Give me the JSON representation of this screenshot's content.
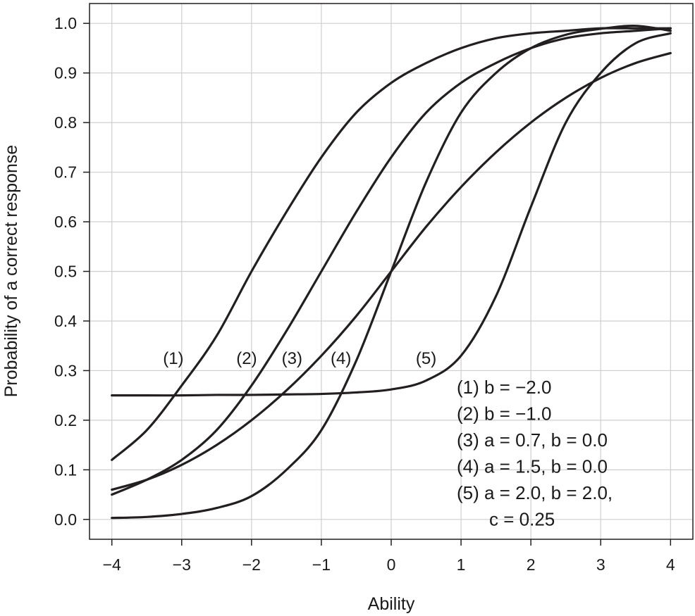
{
  "chart_data": {
    "type": "line",
    "xlabel": "Ability",
    "ylabel": "Probability of a correct response",
    "xlim": [
      -4.32,
      4.32
    ],
    "ylim": [
      -0.04,
      1.04
    ],
    "xticks": [
      -4,
      -3,
      -2,
      -1,
      0,
      1,
      2,
      3,
      4
    ],
    "xtick_labels": [
      "−4",
      "−3",
      "−2",
      "−1",
      "0",
      "1",
      "2",
      "3",
      "4"
    ],
    "yticks": [
      0.0,
      0.1,
      0.2,
      0.3,
      0.4,
      0.5,
      0.6,
      0.7,
      0.8,
      0.9,
      1.0
    ],
    "ytick_labels": [
      "0.0",
      "0.1",
      "0.2",
      "0.3",
      "0.4",
      "0.5",
      "0.6",
      "0.7",
      "0.8",
      "0.9",
      "1.0"
    ],
    "grid": true,
    "x": [
      -4,
      -3.5,
      -3,
      -2.5,
      -2,
      -1.5,
      -1,
      -0.5,
      0,
      0.5,
      1,
      1.5,
      2,
      2.5,
      3,
      3.5,
      4
    ],
    "series": [
      {
        "name": "(1)",
        "values": [
          0.12,
          0.18,
          0.27,
          0.37,
          0.5,
          0.62,
          0.73,
          0.82,
          0.88,
          0.92,
          0.95,
          0.97,
          0.98,
          0.985,
          0.99,
          0.99,
          0.99
        ]
      },
      {
        "name": "(2)",
        "values": [
          0.05,
          0.08,
          0.12,
          0.18,
          0.27,
          0.38,
          0.5,
          0.62,
          0.73,
          0.82,
          0.88,
          0.92,
          0.95,
          0.97,
          0.98,
          0.985,
          0.99
        ]
      },
      {
        "name": "(3)",
        "values": [
          0.06,
          0.08,
          0.11,
          0.15,
          0.2,
          0.26,
          0.33,
          0.41,
          0.5,
          0.59,
          0.67,
          0.74,
          0.8,
          0.85,
          0.89,
          0.92,
          0.94
        ]
      },
      {
        "name": "(4)",
        "values": [
          0.003,
          0.005,
          0.011,
          0.023,
          0.047,
          0.1,
          0.18,
          0.32,
          0.5,
          0.68,
          0.82,
          0.9,
          0.95,
          0.977,
          0.989,
          0.995,
          0.985
        ]
      },
      {
        "name": "(5)",
        "values": [
          0.25,
          0.25,
          0.25,
          0.251,
          0.251,
          0.252,
          0.253,
          0.256,
          0.262,
          0.28,
          0.33,
          0.45,
          0.63,
          0.8,
          0.9,
          0.96,
          0.98
        ]
      }
    ],
    "curve_labels": [
      {
        "text": "(1)",
        "x": -3.12,
        "y": 0.325
      },
      {
        "text": "(2)",
        "x": -2.07,
        "y": 0.325
      },
      {
        "text": "(3)",
        "x": -1.42,
        "y": 0.325
      },
      {
        "text": "(4)",
        "x": -0.72,
        "y": 0.325
      },
      {
        "text": "(5)",
        "x": 0.5,
        "y": 0.325
      }
    ],
    "legend": {
      "placement": "bottom-right",
      "lines": [
        "(1) b = −2.0",
        "(2) b = −1.0",
        "(3) a = 0.7, b = 0.0",
        "(4) a = 1.5, b = 0.0",
        "(5) a = 2.0, b = 2.0,",
        "c = 0.25"
      ]
    }
  }
}
